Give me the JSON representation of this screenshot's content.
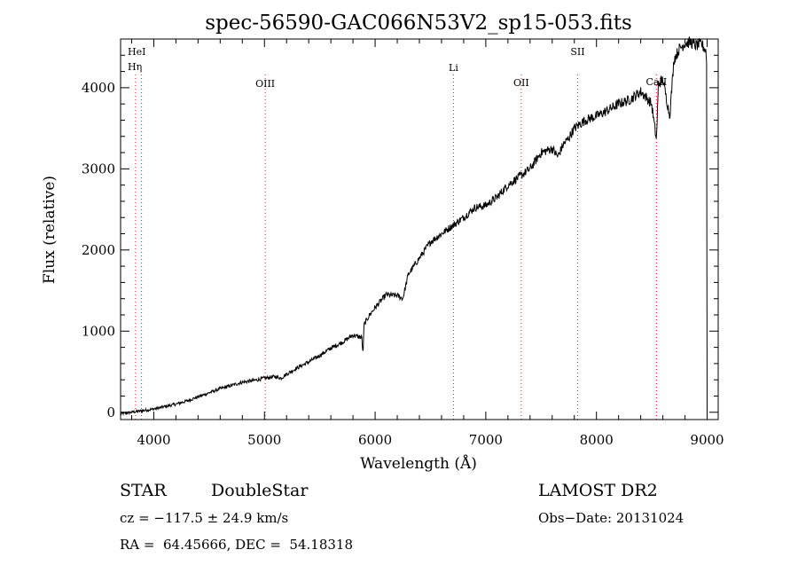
{
  "chart_data": {
    "type": "line",
    "title": "spec-56590-GAC066N53V2_sp15-053.fits",
    "xlabel": "Wavelength (Å)",
    "ylabel": "Flux (relative)",
    "xlim": [
      3700,
      9100
    ],
    "ylim": [
      -90,
      4600
    ],
    "xticks": [
      4000,
      5000,
      6000,
      7000,
      8000,
      9000
    ],
    "yticks": [
      0,
      1000,
      2000,
      3000,
      4000
    ],
    "grid": false,
    "series": [
      {
        "x": [
          3700,
          3800,
          3900,
          4000,
          4100,
          4200,
          4300,
          4400,
          4500,
          4600,
          4700,
          4800,
          4900,
          5000,
          5100,
          5150,
          5200,
          5300,
          5400,
          5500,
          5600,
          5700,
          5800,
          5880,
          5890,
          5900,
          5950,
          6000,
          6100,
          6150,
          6200,
          6250,
          6300,
          6350,
          6400,
          6500,
          6600,
          6700,
          6800,
          6900,
          7000,
          7100,
          7200,
          7300,
          7400,
          7500,
          7600,
          7650,
          7700,
          7750,
          7800,
          7900,
          8000,
          8100,
          8200,
          8300,
          8400,
          8450,
          8498,
          8542,
          8560,
          8600,
          8662,
          8700,
          8750,
          8800,
          8850,
          8900,
          8950,
          8990,
          9000
        ],
        "y": [
          -20,
          0,
          20,
          40,
          70,
          100,
          140,
          190,
          240,
          290,
          330,
          370,
          390,
          420,
          440,
          420,
          470,
          550,
          620,
          700,
          790,
          860,
          950,
          920,
          700,
          1080,
          1200,
          1290,
          1450,
          1440,
          1440,
          1400,
          1700,
          1800,
          1900,
          2100,
          2200,
          2300,
          2400,
          2520,
          2550,
          2650,
          2800,
          2900,
          3000,
          3200,
          3250,
          3150,
          3300,
          3380,
          3500,
          3600,
          3650,
          3720,
          3800,
          3850,
          3950,
          3880,
          3800,
          3350,
          4050,
          4100,
          3650,
          4350,
          4480,
          4550,
          4560,
          4520,
          4540,
          4450,
          0
        ]
      }
    ],
    "line_markers": [
      {
        "label": "HeI",
        "x": 3889
      },
      {
        "label": "Hη",
        "x": 3835
      },
      {
        "label": "OIII",
        "x": 5007
      },
      {
        "label": "Li",
        "x": 6708
      },
      {
        "label": "OII",
        "x": 7320
      },
      {
        "label": "SII",
        "x": 7830
      },
      {
        "label": "CaII",
        "x": 8542
      }
    ]
  },
  "info": {
    "object_class": "STAR",
    "subclass": "DoubleStar",
    "survey": "LAMOST DR2",
    "cz": "cz = −117.5 ± 24.9 km/s",
    "obs_date": "Obs−Date: 20131024",
    "radec": "RA =  64.45666, DEC =  54.18318"
  }
}
